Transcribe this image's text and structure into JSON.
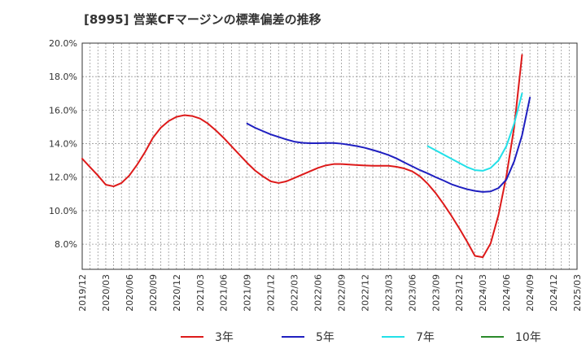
{
  "chart_data": {
    "type": "line",
    "title": "[8995]  営業CFマージンの標準偏差の推移",
    "xlabel": "",
    "ylabel": "",
    "ylim": [
      6.5,
      20.0
    ],
    "grid": true,
    "legend_position": "bottom",
    "x_ticks": [
      "2019/12",
      "2020/03",
      "2020/06",
      "2020/09",
      "2020/12",
      "2021/03",
      "2021/06",
      "2021/09",
      "2021/12",
      "2022/03",
      "2022/06",
      "2022/09",
      "2022/12",
      "2023/03",
      "2023/06",
      "2023/09",
      "2023/12",
      "2024/03",
      "2024/06",
      "2024/09",
      "2024/12",
      "2025/03"
    ],
    "y_ticks": [
      "8.0%",
      "10.0%",
      "12.0%",
      "14.0%",
      "16.0%",
      "18.0%",
      "20.0%"
    ],
    "y_tick_values": [
      8,
      10,
      12,
      14,
      16,
      18,
      20
    ],
    "series": [
      {
        "name": "3年",
        "color": "#dd1a1a",
        "x": [
          "2019/12",
          "2020/01",
          "2020/02",
          "2020/03",
          "2020/04",
          "2020/05",
          "2020/06",
          "2020/07",
          "2020/08",
          "2020/09",
          "2020/10",
          "2020/11",
          "2020/12",
          "2021/01",
          "2021/02",
          "2021/03",
          "2021/04",
          "2021/05",
          "2021/06",
          "2021/07",
          "2021/08",
          "2021/09",
          "2021/10",
          "2021/11",
          "2021/12",
          "2022/01",
          "2022/02",
          "2022/03",
          "2022/04",
          "2022/05",
          "2022/06",
          "2022/07",
          "2022/08",
          "2022/09",
          "2022/10",
          "2022/11",
          "2022/12",
          "2023/01",
          "2023/02",
          "2023/03",
          "2023/04",
          "2023/05",
          "2023/06",
          "2023/07",
          "2023/08",
          "2023/09",
          "2023/10",
          "2023/11",
          "2023/12",
          "2024/01",
          "2024/02",
          "2024/03",
          "2024/04",
          "2024/05",
          "2024/06",
          "2024/07",
          "2024/08",
          "2024/09"
        ],
        "values": [
          13.1,
          12.6,
          12.1,
          11.55,
          11.45,
          11.65,
          12.1,
          12.75,
          13.5,
          14.35,
          14.95,
          15.35,
          15.6,
          15.7,
          15.65,
          15.5,
          15.2,
          14.8,
          14.35,
          13.85,
          13.35,
          12.85,
          12.4,
          12.05,
          11.75,
          11.65,
          11.75,
          11.95,
          12.15,
          12.35,
          12.55,
          12.7,
          12.78,
          12.78,
          12.75,
          12.72,
          12.7,
          12.68,
          12.68,
          12.68,
          12.62,
          12.52,
          12.35,
          12.05,
          11.6,
          11.05,
          10.4,
          9.7,
          8.95,
          8.15,
          7.3,
          7.22,
          8.05,
          9.75,
          12.05,
          15.0,
          19.3,
          null
        ]
      },
      {
        "name": "5年",
        "color": "#1f1fc0",
        "x": [
          "2021/09",
          "2021/10",
          "2021/11",
          "2021/12",
          "2022/01",
          "2022/02",
          "2022/03",
          "2022/04",
          "2022/05",
          "2022/06",
          "2022/07",
          "2022/08",
          "2022/09",
          "2022/10",
          "2022/11",
          "2022/12",
          "2023/01",
          "2023/02",
          "2023/03",
          "2023/04",
          "2023/05",
          "2023/06",
          "2023/07",
          "2023/08",
          "2023/09",
          "2023/10",
          "2023/11",
          "2023/12",
          "2024/01",
          "2024/02",
          "2024/03",
          "2024/04",
          "2024/05",
          "2024/06",
          "2024/07",
          "2024/08",
          "2024/09"
        ],
        "values": [
          15.2,
          14.95,
          14.75,
          14.55,
          14.4,
          14.25,
          14.12,
          14.05,
          14.03,
          14.03,
          14.04,
          14.04,
          14.0,
          13.93,
          13.85,
          13.75,
          13.62,
          13.48,
          13.32,
          13.12,
          12.88,
          12.65,
          12.42,
          12.22,
          12.0,
          11.8,
          11.58,
          11.42,
          11.28,
          11.18,
          11.12,
          11.15,
          11.35,
          11.85,
          12.95,
          14.5,
          16.75
        ]
      },
      {
        "name": "7年",
        "color": "#22e0e8",
        "x": [
          "2023/08",
          "2023/09",
          "2023/10",
          "2023/11",
          "2023/12",
          "2024/01",
          "2024/02",
          "2024/03",
          "2024/04",
          "2024/05",
          "2024/06",
          "2024/07",
          "2024/08",
          "2024/09"
        ],
        "values": [
          13.85,
          13.6,
          13.35,
          13.1,
          12.85,
          12.6,
          12.42,
          12.38,
          12.55,
          13.0,
          13.85,
          15.2,
          17.0,
          null
        ]
      },
      {
        "name": "10年",
        "color": "#2a8a2a",
        "x": [],
        "values": []
      }
    ]
  }
}
